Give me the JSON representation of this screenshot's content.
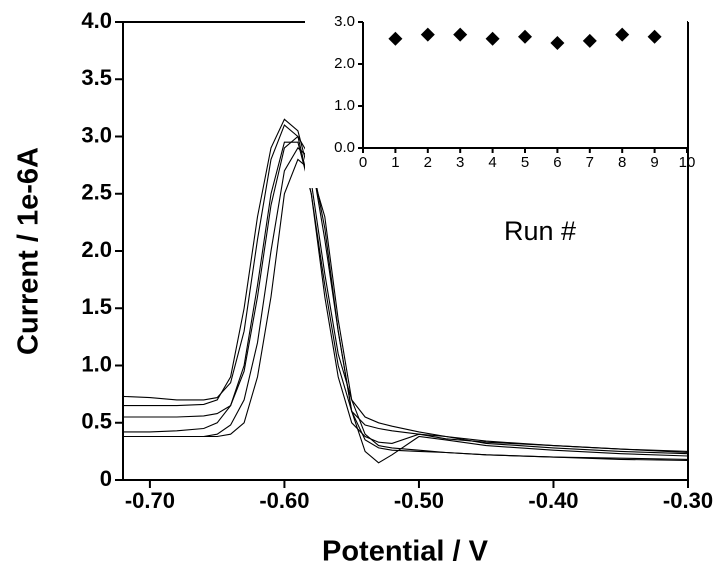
{
  "chart_data": [
    {
      "type": "line",
      "xlabel": "Potential / V",
      "ylabel": "Current / 1e-6A",
      "x": [
        -0.72,
        -0.7,
        -0.68,
        -0.66,
        -0.65,
        -0.64,
        -0.63,
        -0.62,
        -0.61,
        -0.6,
        -0.59,
        -0.58,
        -0.57,
        -0.56,
        -0.55,
        -0.54,
        -0.53,
        -0.52,
        -0.5,
        -0.48,
        -0.45,
        -0.4,
        -0.35,
        -0.3
      ],
      "series": [
        {
          "color": "#000000",
          "values": [
            0.73,
            0.72,
            0.7,
            0.7,
            0.72,
            0.85,
            1.3,
            2.1,
            2.8,
            3.1,
            3.0,
            2.5,
            1.7,
            1.0,
            0.6,
            0.48,
            0.45,
            0.43,
            0.4,
            0.36,
            0.33,
            0.3,
            0.27,
            0.25
          ]
        },
        {
          "color": "#000000",
          "values": [
            0.65,
            0.65,
            0.65,
            0.66,
            0.7,
            0.9,
            1.5,
            2.3,
            2.9,
            3.15,
            3.05,
            2.6,
            1.8,
            1.1,
            0.7,
            0.55,
            0.5,
            0.47,
            0.42,
            0.38,
            0.34,
            0.3,
            0.27,
            0.24
          ]
        },
        {
          "color": "#000000",
          "values": [
            0.55,
            0.55,
            0.55,
            0.56,
            0.58,
            0.65,
            0.95,
            1.6,
            2.4,
            2.9,
            3.0,
            2.8,
            2.1,
            1.3,
            0.6,
            0.25,
            0.15,
            0.22,
            0.38,
            0.35,
            0.3,
            0.26,
            0.23,
            0.21
          ]
        },
        {
          "color": "#000000",
          "values": [
            0.42,
            0.42,
            0.43,
            0.45,
            0.5,
            0.65,
            1.0,
            1.7,
            2.5,
            2.95,
            2.95,
            2.5,
            1.6,
            0.9,
            0.5,
            0.38,
            0.33,
            0.32,
            0.4,
            0.38,
            0.32,
            0.28,
            0.25,
            0.23
          ]
        },
        {
          "color": "#000000",
          "values": [
            0.38,
            0.38,
            0.38,
            0.38,
            0.4,
            0.48,
            0.7,
            1.2,
            2.0,
            2.7,
            2.9,
            2.8,
            2.2,
            1.3,
            0.6,
            0.35,
            0.28,
            0.26,
            0.25,
            0.24,
            0.22,
            0.2,
            0.19,
            0.18
          ]
        },
        {
          "color": "#000000",
          "values": [
            0.38,
            0.38,
            0.38,
            0.38,
            0.38,
            0.4,
            0.5,
            0.9,
            1.6,
            2.5,
            2.8,
            2.7,
            2.3,
            1.4,
            0.7,
            0.4,
            0.3,
            0.28,
            0.26,
            0.24,
            0.22,
            0.2,
            0.18,
            0.17
          ]
        }
      ],
      "xlim": [
        -0.72,
        -0.3
      ],
      "xticks": [
        {
          "value": -0.7,
          "label": "-0.70"
        },
        {
          "value": -0.6,
          "label": "-0.60"
        },
        {
          "value": -0.5,
          "label": "-0.50"
        },
        {
          "value": -0.4,
          "label": "-0.40"
        },
        {
          "value": -0.3,
          "label": "-0.30"
        }
      ],
      "ylim": [
        0,
        4
      ],
      "yticks": [
        0,
        {
          "value": 0.5,
          "label": "0.5"
        },
        {
          "value": 1,
          "label": "1.0"
        },
        1.5,
        {
          "value": 2,
          "label": "2.0"
        },
        2.5,
        {
          "value": 3,
          "label": "3.0"
        },
        3.5,
        {
          "value": 4,
          "label": "4.0"
        }
      ]
    },
    {
      "type": "scatter",
      "xlabel": "Run #",
      "color": "#000000",
      "x": [
        1,
        2,
        3,
        4,
        5,
        6,
        7,
        8,
        9
      ],
      "values": [
        2.6,
        2.7,
        2.7,
        2.6,
        2.65,
        2.5,
        2.55,
        2.7,
        2.65
      ],
      "xlim": [
        0,
        10
      ],
      "xticks": [
        0,
        1,
        2,
        3,
        4,
        5,
        6,
        7,
        8,
        9,
        10
      ],
      "ylim": [
        0,
        3
      ],
      "yticks": [
        {
          "value": 0,
          "label": "0.0"
        },
        {
          "value": 1,
          "label": "1.0"
        },
        {
          "value": 2,
          "label": "2.0"
        },
        {
          "value": 3,
          "label": "3.0"
        }
      ]
    }
  ]
}
